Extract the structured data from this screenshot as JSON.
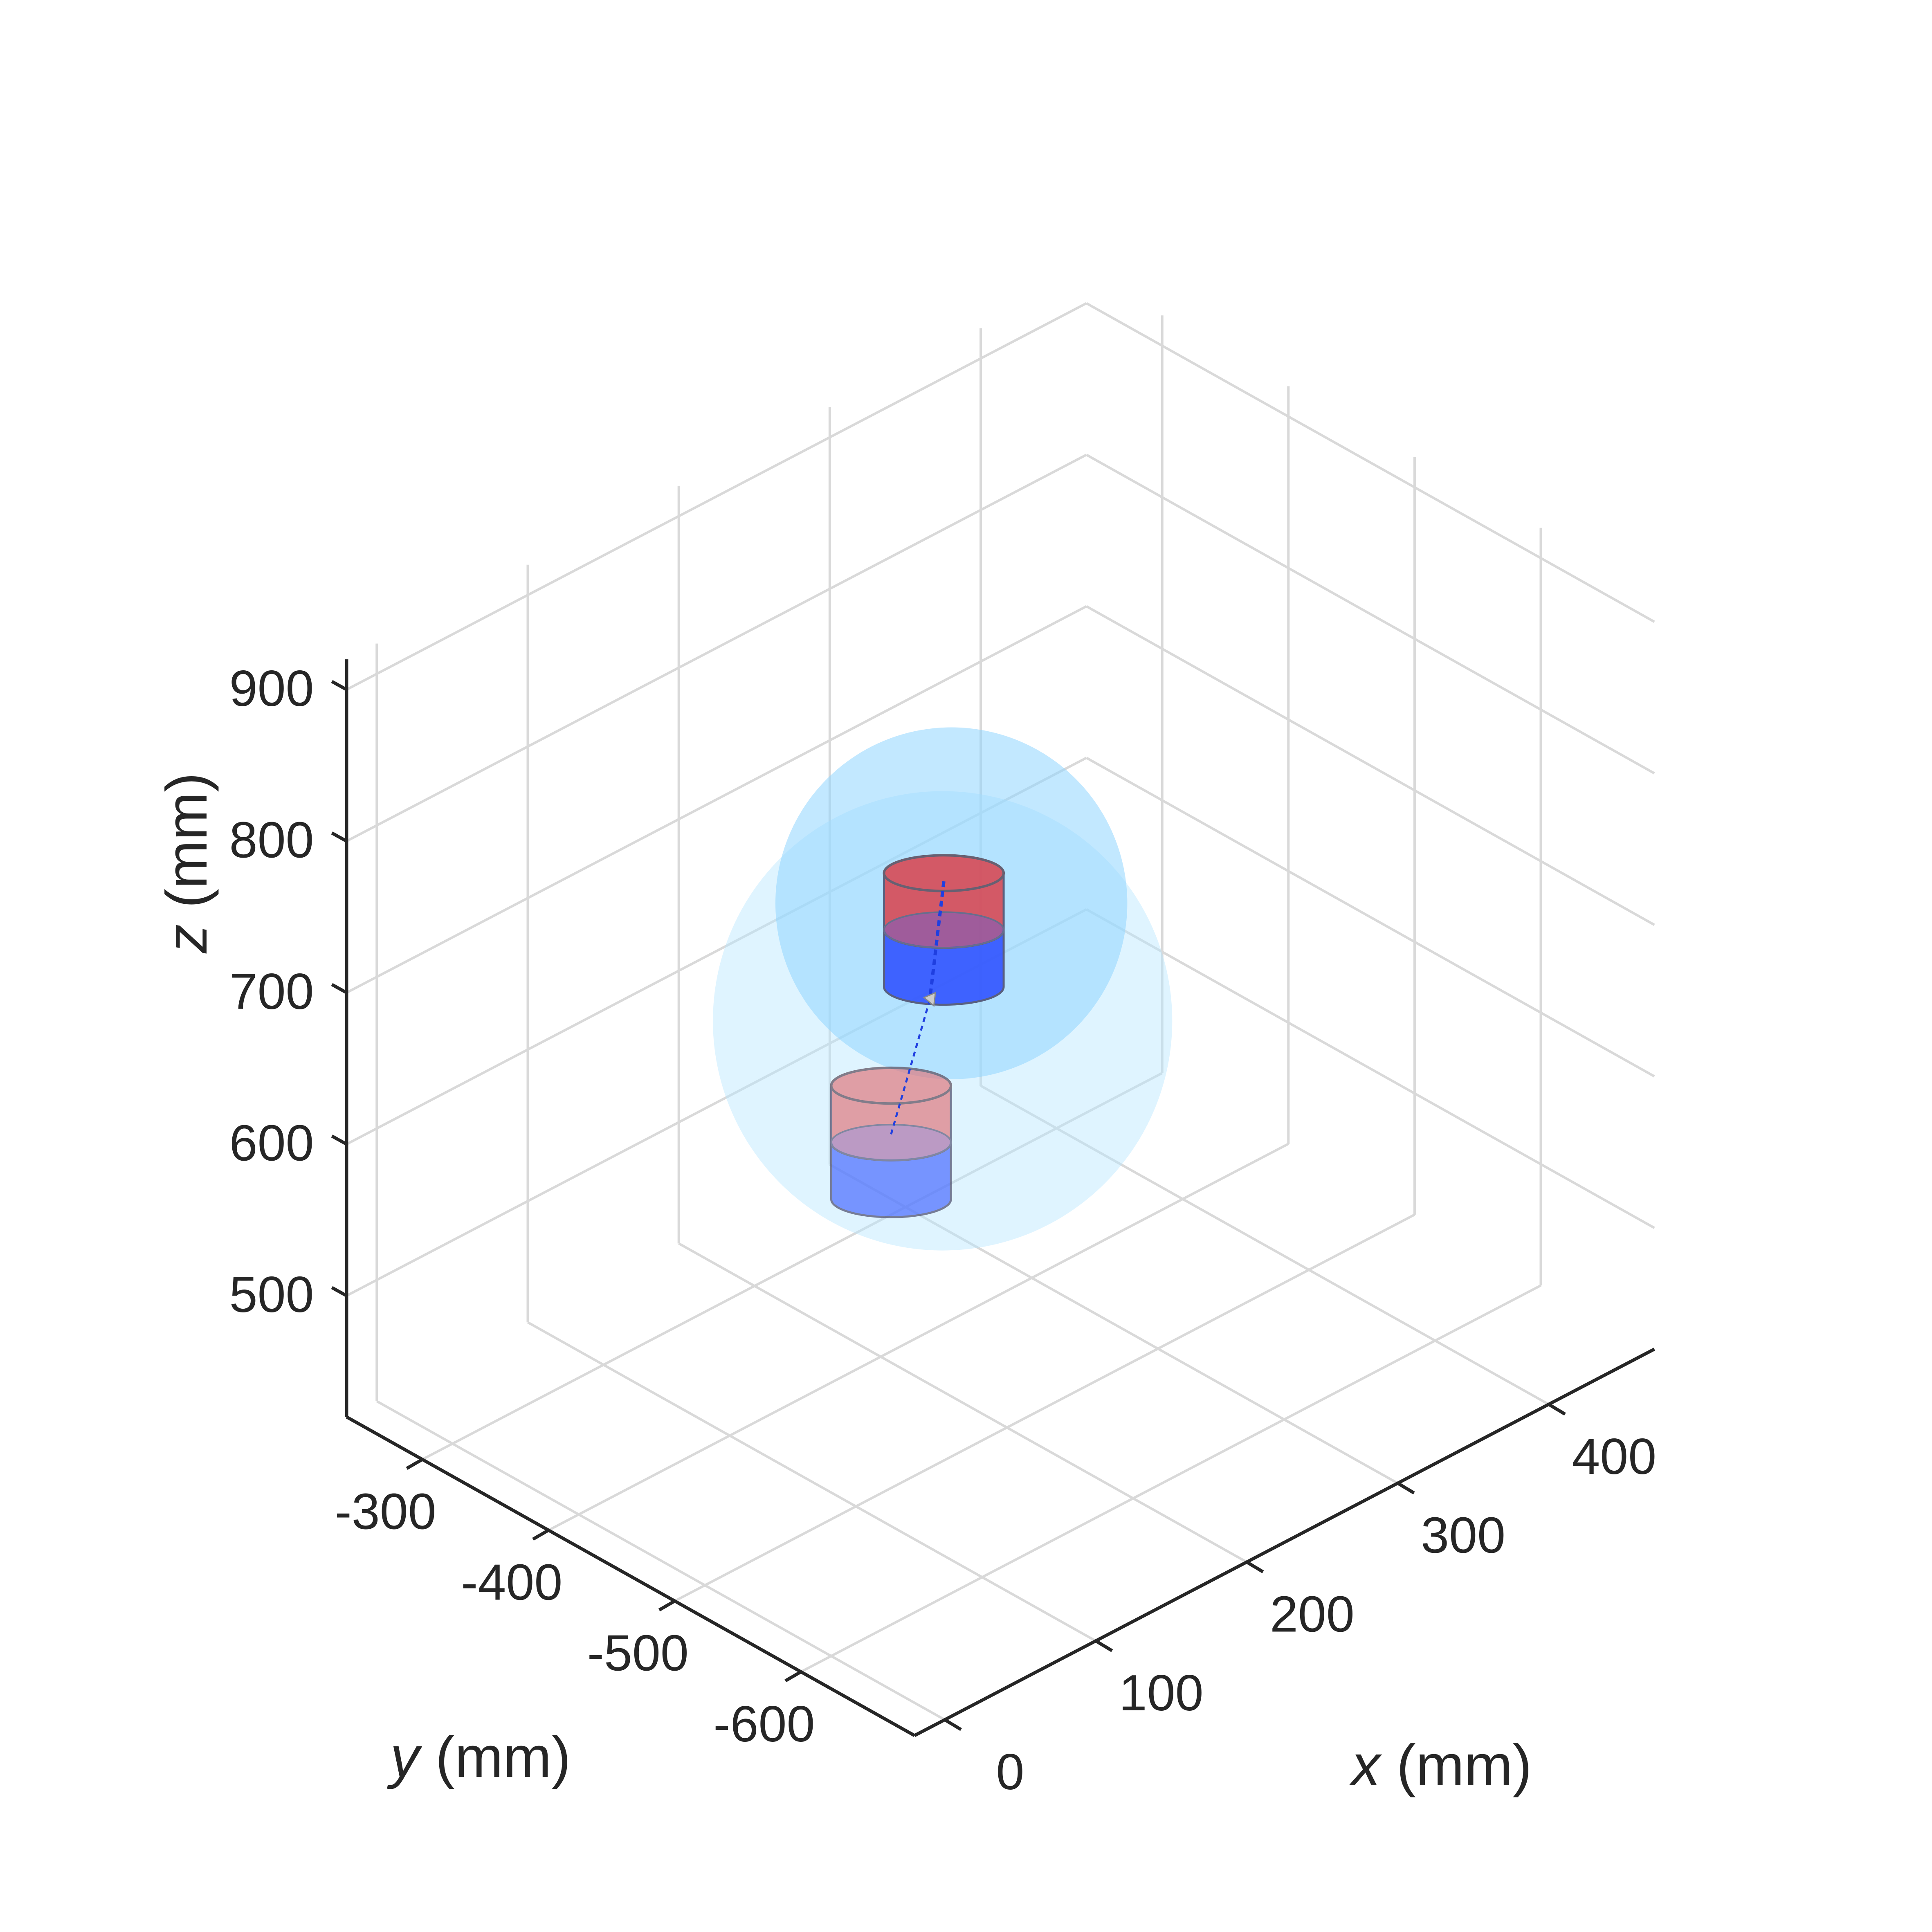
{
  "chart_data": {
    "type": "scatter",
    "title": "",
    "axes": {
      "x": {
        "label_var": "x",
        "label_unit": " (mm)",
        "ticks": [
          0,
          100,
          200,
          300,
          400
        ],
        "tick_labels": [
          "0",
          "100",
          "200",
          "300",
          "400"
        ],
        "range": [
          -20,
          470
        ]
      },
      "y": {
        "label_var": "y",
        "label_unit": " (mm)",
        "ticks": [
          -300,
          -400,
          -500,
          -600
        ],
        "tick_labels": [
          "-300",
          "-400",
          "-500",
          "-600"
        ],
        "range": [
          -690,
          -240
        ]
      },
      "z": {
        "label_var": "z",
        "label_unit": " (mm)",
        "ticks": [
          500,
          600,
          700,
          800,
          900
        ],
        "tick_labels": [
          "500",
          "600",
          "700",
          "800",
          "900"
        ],
        "range": [
          420,
          920
        ]
      }
    },
    "grid": true,
    "view": "isometric-3d",
    "objects": {
      "spheres": [
        {
          "center": [
            195,
            -455,
            670
          ],
          "radius": 235,
          "color": "#b8e6ff",
          "opacity": 0.45
        },
        {
          "center": [
            205,
            -450,
            740
          ],
          "radius": 180,
          "color": "#8fd6ff",
          "opacity": 0.55
        }
      ],
      "cylinders": [
        {
          "center": [
            200,
            -450,
            725
          ],
          "radius": 38,
          "height": 75,
          "top_color": "#d9414c",
          "bottom_color": "#2a4cff",
          "opacity": 0.85
        },
        {
          "center": [
            140,
            -480,
            630
          ],
          "radius": 38,
          "height": 75,
          "top_color": "#e07a80",
          "bottom_color": "#4a6cff",
          "opacity": 0.7
        }
      ],
      "endpoint": [
        245,
        -385,
        625
      ],
      "dashed_color": "#1f3fe0"
    }
  }
}
